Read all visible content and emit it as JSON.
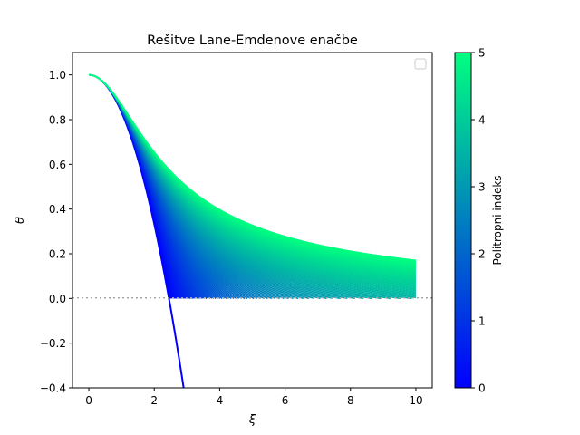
{
  "chart_data": {
    "type": "line",
    "title": "Rešitve Lane-Emdenove enačbe",
    "xlabel": "ξ",
    "ylabel": "θ",
    "xlim": [
      -0.5,
      10.5
    ],
    "ylim": [
      -0.4,
      1.1
    ],
    "x_ticks": [
      0,
      2,
      4,
      6,
      8,
      10
    ],
    "y_ticks": [
      -0.4,
      -0.2,
      0.0,
      0.2,
      0.4,
      0.6,
      0.8,
      1.0
    ],
    "x_tick_labels": [
      "0",
      "2",
      "4",
      "6",
      "8",
      "10"
    ],
    "y_tick_labels": [
      "−0.4",
      "−0.2",
      "0.0",
      "0.2",
      "0.4",
      "0.6",
      "0.8",
      "1.0"
    ],
    "reference_line": {
      "y": 0.0,
      "style": "dotted",
      "color": "#a0a0a0"
    },
    "legend": {
      "placement": "top-right",
      "entries": []
    },
    "series_family": {
      "parameter": "polytropic index n",
      "n_range": [
        0,
        5
      ],
      "xi_max": 10,
      "samples": {
        "n0": {
          "x": [
            0,
            0.5,
            1.0,
            1.5,
            2.0,
            2.449,
            2.9
          ],
          "y": [
            1.0,
            0.958,
            0.833,
            0.625,
            0.333,
            0.0,
            -0.402
          ]
        },
        "n5": {
          "x": [
            0,
            1,
            2,
            4,
            6,
            8,
            10
          ],
          "y": [
            1.0,
            0.866,
            0.655,
            0.397,
            0.277,
            0.212,
            0.171
          ]
        }
      }
    },
    "colorbar": {
      "label": "Politropni indeks",
      "range": [
        0,
        5
      ],
      "ticks": [
        0,
        1,
        2,
        3,
        4,
        5
      ],
      "tick_labels": [
        "0",
        "1",
        "2",
        "3",
        "4",
        "5"
      ],
      "colormap": "winter",
      "color_low": "#0000ff",
      "color_high": "#00ff80"
    }
  }
}
